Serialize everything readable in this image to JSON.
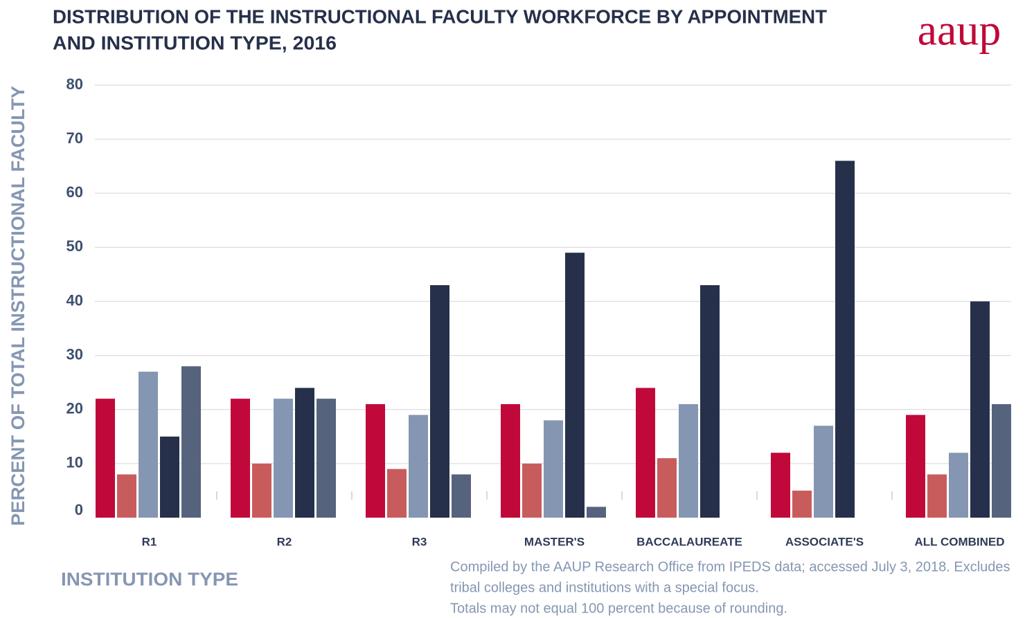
{
  "logo": "aaup",
  "chart_data": {
    "type": "bar",
    "title": [
      "DISTRIBUTION OF THE INSTRUCTIONAL FACULTY WORKFORCE BY APPOINTMENT",
      "AND INSTITUTION TYPE, 2016"
    ],
    "ylabel": "PERCENT OF TOTAL INSTRUCTIONAL FACULTY",
    "xlabel": "INSTITUTION TYPE",
    "note": [
      "Compiled by the AAUP Research Office from IPEDS data; accessed July 3, 2018.  Excludes",
      "tribal colleges and institutions with a special focus.",
      "Totals may not equal 100 percent because of rounding."
    ],
    "categories": [
      "R1",
      "R2",
      "R3",
      "MASTER'S",
      "BACCALAUREATE",
      "ASSOCIATE'S",
      "ALL COMBINED"
    ],
    "series": [
      {
        "color": "#c0093a",
        "values": [
          22,
          22,
          21,
          21,
          24,
          12,
          19
        ]
      },
      {
        "color": "#c85c5c",
        "values": [
          8,
          10,
          9,
          10,
          11,
          5,
          8
        ]
      },
      {
        "color": "#8596b2",
        "values": [
          27,
          22,
          19,
          18,
          21,
          17,
          12
        ]
      },
      {
        "color": "#26304a",
        "values": [
          15,
          24,
          43,
          49,
          43,
          66,
          40
        ]
      },
      {
        "color": "#56637d",
        "values": [
          28,
          22,
          8,
          2,
          null,
          null,
          21
        ]
      }
    ],
    "ylim": [
      0,
      80
    ],
    "yticks": [
      0,
      10,
      20,
      30,
      40,
      50,
      60,
      70,
      80
    ],
    "grid": true
  }
}
